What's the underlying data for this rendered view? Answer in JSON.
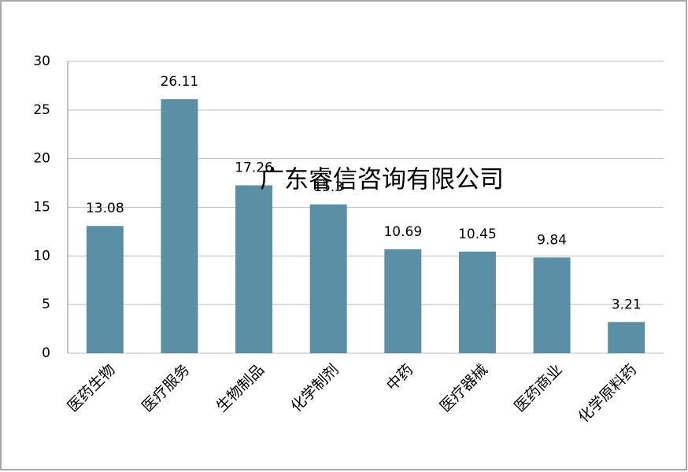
{
  "chart_data": {
    "type": "bar",
    "categories": [
      "医药生物",
      "医疗服务",
      "生物制品",
      "化学制剂",
      "中药",
      "医疗器械",
      "医药商业",
      "化学原料药"
    ],
    "values": [
      13.08,
      26.11,
      17.26,
      15.3,
      10.69,
      10.45,
      9.84,
      3.21
    ],
    "color": "#5b8fa6",
    "ylim": [
      0,
      30
    ],
    "yticks": [
      0,
      5,
      10,
      15,
      20,
      25,
      30
    ],
    "grid": true,
    "watermark": "广东睿信咨询有限公司"
  }
}
